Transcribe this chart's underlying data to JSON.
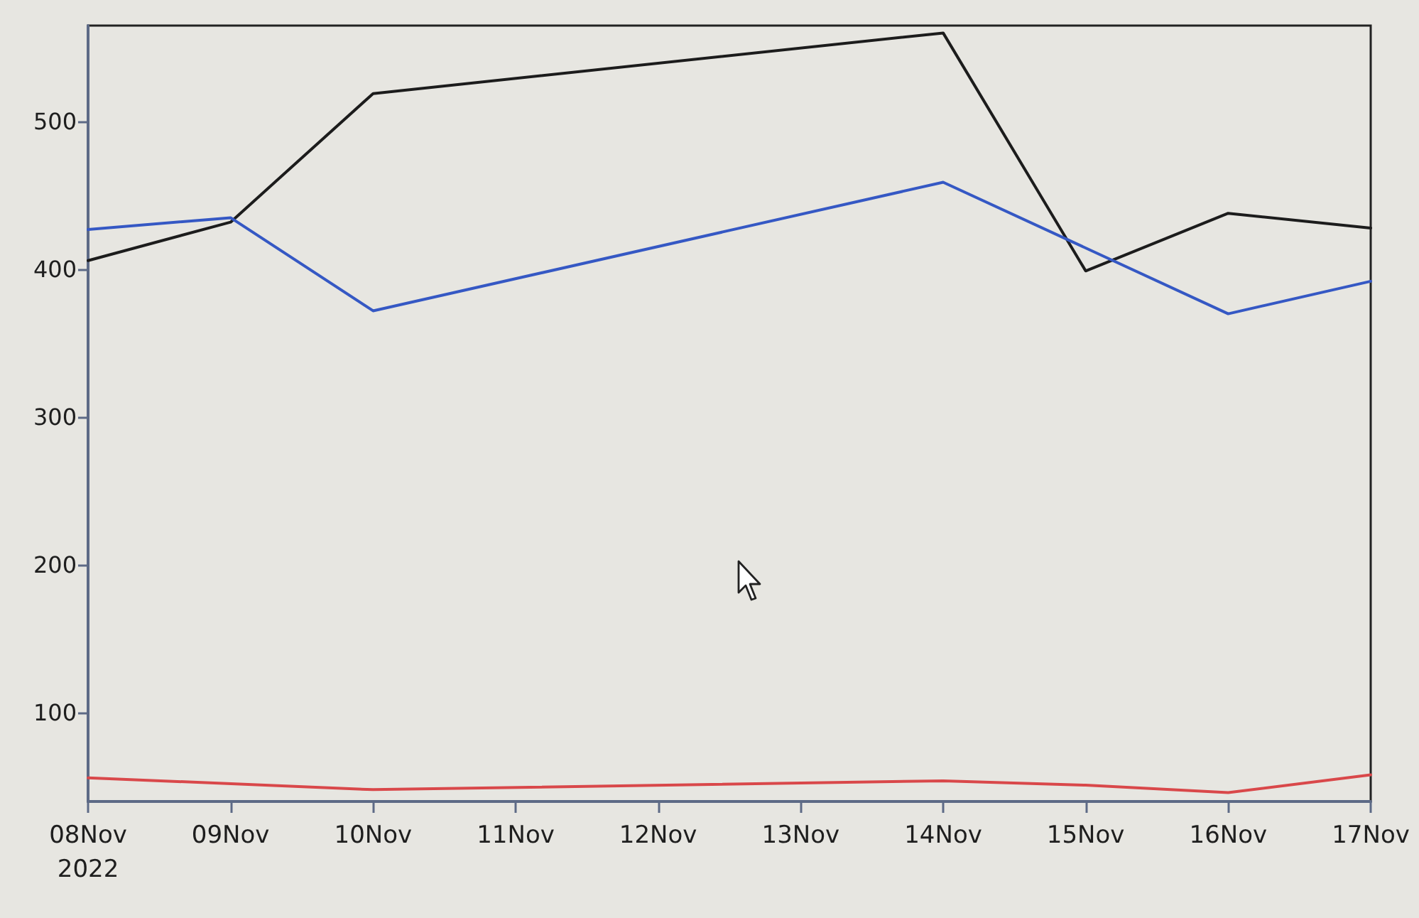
{
  "chart_data": {
    "type": "line",
    "xlim": [
      "2022-11-08",
      "2022-11-17"
    ],
    "xticks": [
      {
        "value": "2022-11-08",
        "label": "08Nov\n2022"
      },
      {
        "value": "2022-11-09",
        "label": "09Nov"
      },
      {
        "value": "2022-11-10",
        "label": "10Nov"
      },
      {
        "value": "2022-11-11",
        "label": "11Nov"
      },
      {
        "value": "2022-11-12",
        "label": "12Nov"
      },
      {
        "value": "2022-11-13",
        "label": "13Nov"
      },
      {
        "value": "2022-11-14",
        "label": "14Nov"
      },
      {
        "value": "2022-11-15",
        "label": "15Nov"
      },
      {
        "value": "2022-11-16",
        "label": "16Nov"
      },
      {
        "value": "2022-11-17",
        "label": "17Nov"
      }
    ],
    "ylim": [
      40,
      565
    ],
    "yticks": [
      100,
      200,
      300,
      400,
      500
    ],
    "marker": "none",
    "line_style": "solid",
    "series": [
      {
        "color": "#1c1c1c",
        "x": [
          "2022-11-08",
          "2022-11-09",
          "2022-11-10",
          "2022-11-14",
          "2022-11-15",
          "2022-11-16",
          "2022-11-17"
        ],
        "values": [
          406,
          432,
          519,
          560,
          399,
          438,
          428
        ]
      },
      {
        "color": "#3558c4",
        "x": [
          "2022-11-08",
          "2022-11-09",
          "2022-11-10",
          "2022-11-14",
          "2022-11-16",
          "2022-11-17"
        ],
        "values": [
          427,
          435,
          372,
          459,
          370,
          392
        ]
      },
      {
        "color": "#d9484a",
        "x": [
          "2022-11-08",
          "2022-11-10",
          "2022-11-14",
          "2022-11-15",
          "2022-11-16",
          "2022-11-17"
        ],
        "values": [
          56,
          48,
          54,
          51,
          46,
          58
        ]
      }
    ]
  }
}
